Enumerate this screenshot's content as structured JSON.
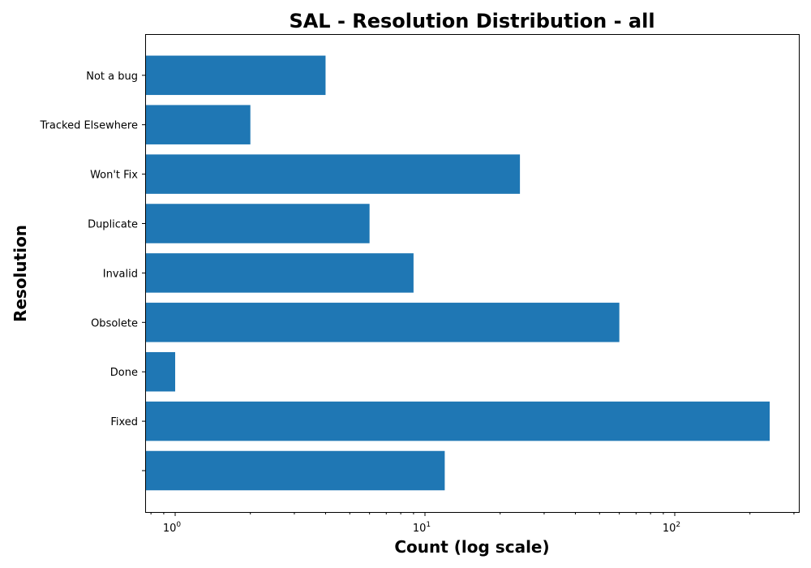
{
  "chart_data": {
    "type": "bar",
    "orientation": "horizontal",
    "title": "SAL - Resolution Distribution - all",
    "xlabel": "Count (log scale)",
    "ylabel": "Resolution",
    "x_scale": "log",
    "xlim": [
      0.8,
      300
    ],
    "x_major_ticks": [
      {
        "value": 1,
        "base": "10",
        "exp": "0"
      },
      {
        "value": 10,
        "base": "10",
        "exp": "1"
      },
      {
        "value": 100,
        "base": "10",
        "exp": "2"
      }
    ],
    "categories": [
      "",
      "Fixed",
      "Done",
      "Obsolete",
      "Invalid",
      "Duplicate",
      "Won't Fix",
      "Tracked Elsewhere",
      "Not a bug"
    ],
    "values": [
      12,
      240,
      1,
      60,
      9,
      6,
      24,
      2,
      4
    ],
    "bar_color": "#1f77b4",
    "grid": false
  }
}
